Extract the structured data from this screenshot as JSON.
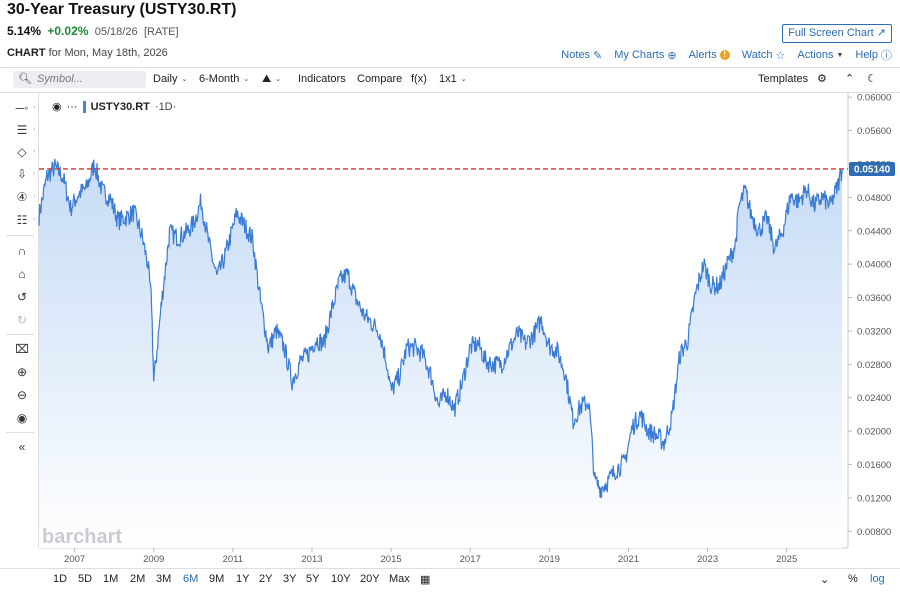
{
  "header": {
    "title": "30-Year Treasury (USTY30.RT)",
    "fullscreen_label": "Full Screen Chart",
    "last": "5.14%",
    "change": "+0.02%",
    "date": "05/18/26",
    "rate_tag": "[RATE]",
    "chart_label": "CHART",
    "chart_for": "for Mon, May 18th, 2026"
  },
  "top_links": {
    "notes": "Notes",
    "my_charts": "My Charts",
    "alerts": "Alerts",
    "alert_icon": "!",
    "watch": "Watch",
    "actions": "Actions",
    "help": "Help"
  },
  "toolbar": {
    "symbol_placeholder": "Symbol...",
    "interval": "Daily",
    "range": "6-Month",
    "indicators": "Indicators",
    "compare": "Compare",
    "fx": "f(x)",
    "layout": "1x1",
    "templates": "Templates"
  },
  "legend": {
    "symbol": "USTY30.RT",
    "period": "·1D·",
    "more": "···"
  },
  "watermark": "barchart",
  "bottom": {
    "ranges": [
      "1D",
      "5D",
      "1M",
      "2M",
      "3M",
      "6M",
      "9M",
      "1Y",
      "2Y",
      "3Y",
      "5Y",
      "10Y",
      "20Y",
      "Max"
    ],
    "active_range": "6M",
    "percent": "%",
    "log": "log"
  },
  "colors": {
    "line": "#3a7bd5",
    "fill_top": "#c9dcf5",
    "ref_line": "#d9302c",
    "price_tag": "#2c6db5"
  },
  "chart_data": {
    "type": "area",
    "x_tick_labels": [
      "2007",
      "2009",
      "2011",
      "2013",
      "2015",
      "2017",
      "2019",
      "2021",
      "2023",
      "2025"
    ],
    "y_tick_labels": [
      "0.06000",
      "0.05600",
      "0.05200",
      "0.04800",
      "0.04400",
      "0.04000",
      "0.03600",
      "0.03200",
      "0.02800",
      "0.02400",
      "0.02000",
      "0.01600",
      "0.01200",
      "0.00800"
    ],
    "ylim": [
      0.006,
      0.0605
    ],
    "xlim": [
      2006.1,
      2026.55
    ],
    "last_value_label": "0.05140",
    "reference_line": 0.0514,
    "x": [
      2006.1,
      2006.3,
      2006.5,
      2006.7,
      2006.9,
      2007.1,
      2007.3,
      2007.5,
      2007.7,
      2007.9,
      2008.1,
      2008.3,
      2008.5,
      2008.7,
      2008.85,
      2008.95,
      2009.0,
      2009.2,
      2009.4,
      2009.6,
      2009.8,
      2010.0,
      2010.2,
      2010.4,
      2010.6,
      2010.8,
      2011.0,
      2011.1,
      2011.3,
      2011.5,
      2011.7,
      2011.9,
      2012.1,
      2012.3,
      2012.5,
      2012.7,
      2012.9,
      2013.1,
      2013.3,
      2013.5,
      2013.7,
      2013.9,
      2014.1,
      2014.3,
      2014.5,
      2014.7,
      2014.9,
      2015.0,
      2015.2,
      2015.4,
      2015.6,
      2015.8,
      2016.0,
      2016.2,
      2016.4,
      2016.6,
      2016.8,
      2017.0,
      2017.2,
      2017.4,
      2017.6,
      2017.8,
      2018.0,
      2018.2,
      2018.4,
      2018.6,
      2018.8,
      2019.0,
      2019.2,
      2019.4,
      2019.6,
      2019.8,
      2020.0,
      2020.15,
      2020.3,
      2020.5,
      2020.7,
      2020.9,
      2021.1,
      2021.3,
      2021.5,
      2021.7,
      2021.9,
      2022.1,
      2022.3,
      2022.5,
      2022.7,
      2022.9,
      2023.1,
      2023.3,
      2023.5,
      2023.7,
      2023.8,
      2023.95,
      2024.1,
      2024.3,
      2024.5,
      2024.7,
      2024.9,
      2025.1,
      2025.3,
      2025.5,
      2025.7,
      2025.9,
      2026.1,
      2026.3,
      2026.4
    ],
    "values": [
      0.0458,
      0.0505,
      0.0516,
      0.0505,
      0.0467,
      0.0484,
      0.0491,
      0.052,
      0.0487,
      0.0479,
      0.0452,
      0.0456,
      0.0462,
      0.0434,
      0.04,
      0.0351,
      0.0258,
      0.0355,
      0.0438,
      0.0432,
      0.0437,
      0.0448,
      0.0475,
      0.0423,
      0.0384,
      0.0409,
      0.0443,
      0.0461,
      0.0446,
      0.043,
      0.0355,
      0.03,
      0.032,
      0.03,
      0.026,
      0.0283,
      0.0292,
      0.031,
      0.0305,
      0.0345,
      0.038,
      0.0388,
      0.036,
      0.034,
      0.033,
      0.032,
      0.028,
      0.0247,
      0.0265,
      0.03,
      0.03,
      0.0292,
      0.0268,
      0.023,
      0.0247,
      0.0226,
      0.0258,
      0.03,
      0.0305,
      0.0283,
      0.028,
      0.0281,
      0.03,
      0.0317,
      0.0305,
      0.0315,
      0.0333,
      0.0302,
      0.0296,
      0.027,
      0.0213,
      0.023,
      0.0235,
      0.014,
      0.0131,
      0.0141,
      0.0155,
      0.0162,
      0.0205,
      0.022,
      0.02,
      0.0195,
      0.0186,
      0.0217,
      0.0291,
      0.0309,
      0.0365,
      0.04,
      0.0374,
      0.0374,
      0.04,
      0.0423,
      0.047,
      0.0488,
      0.046,
      0.044,
      0.0455,
      0.0418,
      0.044,
      0.0482,
      0.0475,
      0.049,
      0.047,
      0.048,
      0.047,
      0.0495,
      0.0514
    ]
  }
}
